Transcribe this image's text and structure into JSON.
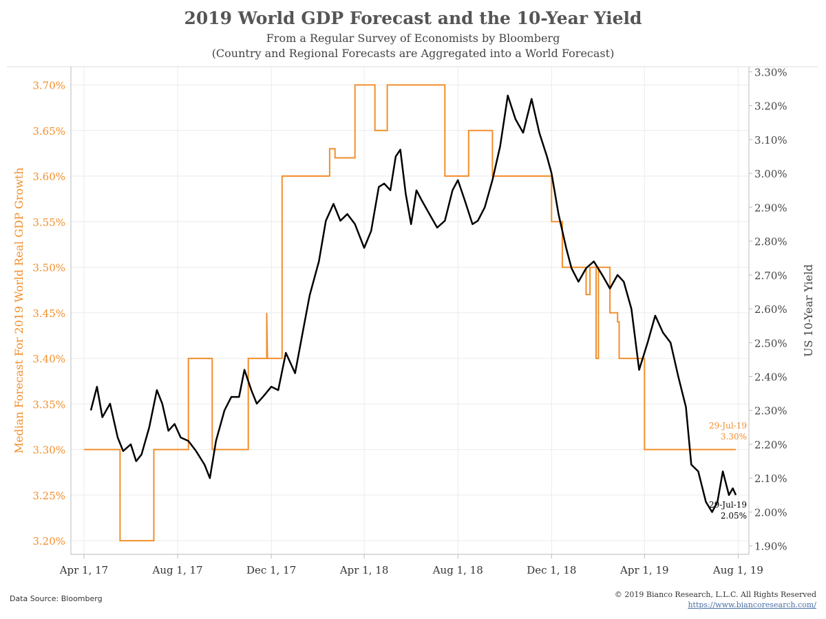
{
  "header": {
    "title": "2019 World GDP Forecast and the 10-Year Yield",
    "subtitle1": "From a Regular Survey of Economists by Bloomberg",
    "subtitle2": "(Country and Regional Forecasts are Aggregated into a World Forecast)"
  },
  "footer": {
    "source": "Data Source: Bloomberg",
    "copyright": "© 2019 Bianco Research, L.L.C. All Rights Reserved",
    "url": "https://www.biancoresearch.com/"
  },
  "colors": {
    "gdp": "#f28e2b",
    "yield": "#000000",
    "grid": "#ebebeb",
    "axis": "#bbbbbb"
  },
  "chart_data": {
    "type": "line",
    "title": "2019 World GDP Forecast and the 10-Year Yield",
    "grid": true,
    "x_axis": {
      "ticks": [
        "2017-04-01",
        "2017-08-01",
        "2017-12-01",
        "2018-04-01",
        "2018-08-01",
        "2018-12-01",
        "2019-04-01",
        "2019-08-01"
      ],
      "tick_labels": [
        "Apr 1, 17",
        "Aug 1, 17",
        "Dec 1, 17",
        "Apr 1, 18",
        "Aug 1, 18",
        "Dec 1, 18",
        "Apr 1, 19",
        "Aug 1, 19"
      ],
      "range": [
        "2017-03-15",
        "2019-08-15"
      ]
    },
    "y_left": {
      "label": "Median Forecast For 2019 World Real GDP Growth",
      "range": [
        3.185,
        3.72
      ],
      "ticks": [
        3.2,
        3.25,
        3.3,
        3.35,
        3.4,
        3.45,
        3.5,
        3.55,
        3.6,
        3.65,
        3.7
      ],
      "tick_labels": [
        "3.20%",
        "3.25%",
        "3.30%",
        "3.35%",
        "3.40%",
        "3.45%",
        "3.50%",
        "3.55%",
        "3.60%",
        "3.65%",
        "3.70%"
      ]
    },
    "y_right": {
      "label": "US 10-Year Yield",
      "range": [
        1.875,
        3.315
      ],
      "ticks": [
        1.9,
        2.0,
        2.1,
        2.2,
        2.3,
        2.4,
        2.5,
        2.6,
        2.7,
        2.8,
        2.9,
        3.0,
        3.1,
        3.2,
        3.3
      ],
      "tick_labels": [
        "1.90%",
        "2.00%",
        "2.10%",
        "2.20%",
        "2.30%",
        "2.40%",
        "2.50%",
        "2.60%",
        "2.70%",
        "2.80%",
        "2.90%",
        "3.00%",
        "3.10%",
        "3.20%",
        "3.30%"
      ]
    },
    "series": [
      {
        "axis": "left",
        "step": true,
        "points": [
          [
            "2017-04-01",
            3.3
          ],
          [
            "2017-05-18",
            3.3
          ],
          [
            "2017-05-18",
            3.2
          ],
          [
            "2017-07-01",
            3.2
          ],
          [
            "2017-07-01",
            3.3
          ],
          [
            "2017-08-15",
            3.3
          ],
          [
            "2017-08-15",
            3.4
          ],
          [
            "2017-09-15",
            3.4
          ],
          [
            "2017-09-15",
            3.3
          ],
          [
            "2017-11-01",
            3.3
          ],
          [
            "2017-11-01",
            3.4
          ],
          [
            "2017-11-25",
            3.4
          ],
          [
            "2017-11-25",
            3.45
          ],
          [
            "2017-11-26",
            3.4
          ],
          [
            "2017-12-15",
            3.4
          ],
          [
            "2017-12-15",
            3.6
          ],
          [
            "2018-02-15",
            3.6
          ],
          [
            "2018-02-15",
            3.63
          ],
          [
            "2018-02-22",
            3.63
          ],
          [
            "2018-02-22",
            3.62
          ],
          [
            "2018-03-20",
            3.62
          ],
          [
            "2018-03-20",
            3.7
          ],
          [
            "2018-04-15",
            3.7
          ],
          [
            "2018-04-15",
            3.65
          ],
          [
            "2018-05-01",
            3.65
          ],
          [
            "2018-05-01",
            3.7
          ],
          [
            "2018-07-15",
            3.7
          ],
          [
            "2018-07-15",
            3.6
          ],
          [
            "2018-08-15",
            3.6
          ],
          [
            "2018-08-15",
            3.65
          ],
          [
            "2018-09-15",
            3.65
          ],
          [
            "2018-09-15",
            3.6
          ],
          [
            "2018-12-01",
            3.6
          ],
          [
            "2018-12-01",
            3.55
          ],
          [
            "2018-12-15",
            3.55
          ],
          [
            "2018-12-15",
            3.5
          ],
          [
            "2019-01-15",
            3.5
          ],
          [
            "2019-01-15",
            3.47
          ],
          [
            "2019-01-20",
            3.47
          ],
          [
            "2019-01-20",
            3.5
          ],
          [
            "2019-01-28",
            3.5
          ],
          [
            "2019-01-28",
            3.4
          ],
          [
            "2019-01-31",
            3.4
          ],
          [
            "2019-01-31",
            3.5
          ],
          [
            "2019-02-15",
            3.5
          ],
          [
            "2019-02-15",
            3.45
          ],
          [
            "2019-02-25",
            3.45
          ],
          [
            "2019-02-25",
            3.44
          ],
          [
            "2019-02-27",
            3.44
          ],
          [
            "2019-02-27",
            3.4
          ],
          [
            "2019-04-01",
            3.4
          ],
          [
            "2019-04-01",
            3.3
          ],
          [
            "2019-07-29",
            3.3
          ]
        ]
      },
      {
        "axis": "right",
        "step": false,
        "points": [
          [
            "2017-04-10",
            2.3
          ],
          [
            "2017-04-18",
            2.37
          ],
          [
            "2017-04-25",
            2.28
          ],
          [
            "2017-05-05",
            2.32
          ],
          [
            "2017-05-15",
            2.22
          ],
          [
            "2017-05-22",
            2.18
          ],
          [
            "2017-06-01",
            2.2
          ],
          [
            "2017-06-08",
            2.15
          ],
          [
            "2017-06-15",
            2.17
          ],
          [
            "2017-06-25",
            2.25
          ],
          [
            "2017-07-05",
            2.36
          ],
          [
            "2017-07-12",
            2.32
          ],
          [
            "2017-07-20",
            2.24
          ],
          [
            "2017-07-28",
            2.26
          ],
          [
            "2017-08-05",
            2.22
          ],
          [
            "2017-08-15",
            2.21
          ],
          [
            "2017-08-25",
            2.18
          ],
          [
            "2017-09-05",
            2.14
          ],
          [
            "2017-09-12",
            2.1
          ],
          [
            "2017-09-20",
            2.21
          ],
          [
            "2017-10-01",
            2.3
          ],
          [
            "2017-10-10",
            2.34
          ],
          [
            "2017-10-20",
            2.34
          ],
          [
            "2017-10-27",
            2.42
          ],
          [
            "2017-11-05",
            2.36
          ],
          [
            "2017-11-12",
            2.32
          ],
          [
            "2017-11-20",
            2.34
          ],
          [
            "2017-12-01",
            2.37
          ],
          [
            "2017-12-10",
            2.36
          ],
          [
            "2017-12-20",
            2.47
          ],
          [
            "2018-01-01",
            2.41
          ],
          [
            "2018-01-10",
            2.52
          ],
          [
            "2018-01-20",
            2.64
          ],
          [
            "2018-02-01",
            2.74
          ],
          [
            "2018-02-10",
            2.86
          ],
          [
            "2018-02-20",
            2.91
          ],
          [
            "2018-03-01",
            2.86
          ],
          [
            "2018-03-10",
            2.88
          ],
          [
            "2018-03-20",
            2.85
          ],
          [
            "2018-04-01",
            2.78
          ],
          [
            "2018-04-10",
            2.83
          ],
          [
            "2018-04-20",
            2.96
          ],
          [
            "2018-04-27",
            2.97
          ],
          [
            "2018-05-05",
            2.95
          ],
          [
            "2018-05-12",
            3.05
          ],
          [
            "2018-05-18",
            3.07
          ],
          [
            "2018-05-25",
            2.94
          ],
          [
            "2018-06-01",
            2.85
          ],
          [
            "2018-06-08",
            2.95
          ],
          [
            "2018-06-15",
            2.92
          ],
          [
            "2018-06-25",
            2.88
          ],
          [
            "2018-07-05",
            2.84
          ],
          [
            "2018-07-15",
            2.86
          ],
          [
            "2018-07-25",
            2.95
          ],
          [
            "2018-08-01",
            2.98
          ],
          [
            "2018-08-10",
            2.92
          ],
          [
            "2018-08-20",
            2.85
          ],
          [
            "2018-08-27",
            2.86
          ],
          [
            "2018-09-05",
            2.9
          ],
          [
            "2018-09-15",
            2.98
          ],
          [
            "2018-09-25",
            3.08
          ],
          [
            "2018-10-05",
            3.23
          ],
          [
            "2018-10-15",
            3.16
          ],
          [
            "2018-10-25",
            3.12
          ],
          [
            "2018-11-05",
            3.22
          ],
          [
            "2018-11-15",
            3.12
          ],
          [
            "2018-11-25",
            3.05
          ],
          [
            "2018-12-01",
            3.0
          ],
          [
            "2018-12-10",
            2.88
          ],
          [
            "2018-12-20",
            2.78
          ],
          [
            "2018-12-27",
            2.72
          ],
          [
            "2019-01-05",
            2.68
          ],
          [
            "2019-01-15",
            2.72
          ],
          [
            "2019-01-25",
            2.74
          ],
          [
            "2019-02-05",
            2.7
          ],
          [
            "2019-02-15",
            2.66
          ],
          [
            "2019-02-25",
            2.7
          ],
          [
            "2019-03-05",
            2.68
          ],
          [
            "2019-03-15",
            2.6
          ],
          [
            "2019-03-25",
            2.42
          ],
          [
            "2019-04-05",
            2.5
          ],
          [
            "2019-04-15",
            2.58
          ],
          [
            "2019-04-25",
            2.53
          ],
          [
            "2019-05-05",
            2.5
          ],
          [
            "2019-05-15",
            2.4
          ],
          [
            "2019-05-25",
            2.31
          ],
          [
            "2019-06-01",
            2.14
          ],
          [
            "2019-06-10",
            2.12
          ],
          [
            "2019-06-20",
            2.03
          ],
          [
            "2019-06-28",
            2.0
          ],
          [
            "2019-07-05",
            2.03
          ],
          [
            "2019-07-12",
            2.12
          ],
          [
            "2019-07-20",
            2.05
          ],
          [
            "2019-07-25",
            2.07
          ],
          [
            "2019-07-29",
            2.05
          ]
        ]
      }
    ],
    "annotations": [
      {
        "axis": "left",
        "date": "29-Jul-19",
        "value": "3.30%"
      },
      {
        "axis": "right",
        "date": "29-Jul-19",
        "value": "2.05%"
      }
    ]
  }
}
